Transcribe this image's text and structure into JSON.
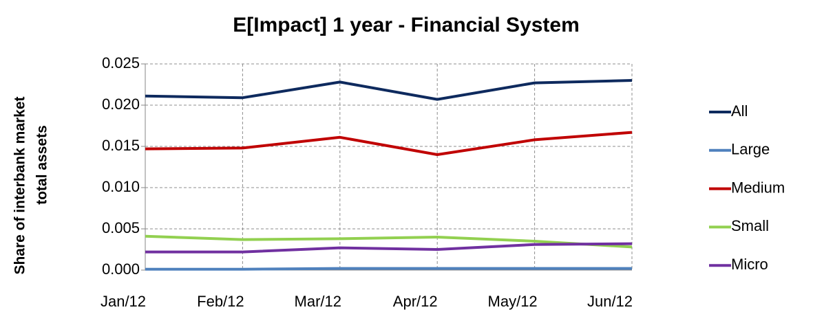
{
  "chart_data": {
    "type": "line",
    "title": "E[Impact] 1 year - Financial System",
    "y_label": [
      "Share of interbank market",
      "total assets"
    ],
    "categories": [
      "Jan/12",
      "Feb/12",
      "Mar/12",
      "Apr/12",
      "May/12",
      "Jun/12"
    ],
    "series": [
      {
        "name": "All",
        "color": "#0e2a5e",
        "values": [
          0.0211,
          0.0209,
          0.0228,
          0.0207,
          0.0227,
          0.023
        ]
      },
      {
        "name": "Large",
        "color": "#4f81bd",
        "values": [
          0.0001,
          0.0001,
          0.0002,
          0.0002,
          0.0002,
          0.0002
        ]
      },
      {
        "name": "Medium",
        "color": "#c00000",
        "values": [
          0.0147,
          0.0148,
          0.0161,
          0.014,
          0.0158,
          0.0167
        ]
      },
      {
        "name": "Small",
        "color": "#92d050",
        "values": [
          0.0041,
          0.0037,
          0.0038,
          0.004,
          0.0035,
          0.0028
        ]
      },
      {
        "name": "Micro",
        "color": "#7030a0",
        "values": [
          0.0022,
          0.0022,
          0.0027,
          0.0025,
          0.0031,
          0.0032
        ]
      }
    ],
    "ylim": [
      0,
      0.025
    ],
    "yticks": [
      {
        "value": 0,
        "label": "0.000"
      },
      0.005,
      {
        "value": 0.01,
        "label": "0.010"
      },
      0.015,
      {
        "value": 0.02,
        "label": "0.020"
      },
      0.025
    ],
    "grid": true,
    "legend": "right"
  }
}
